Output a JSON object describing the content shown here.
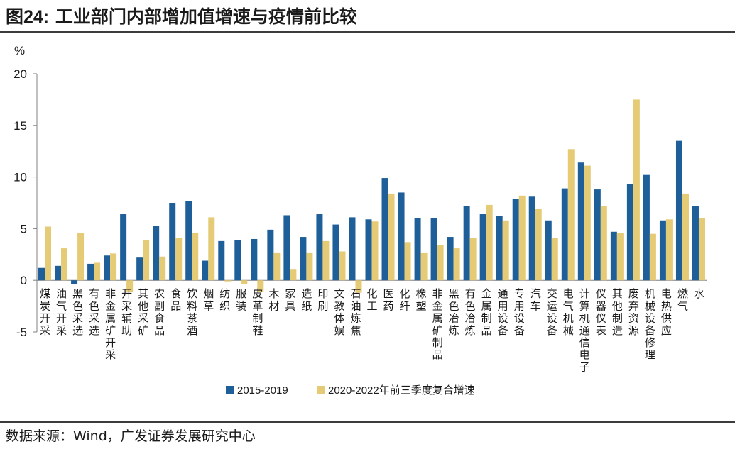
{
  "header": {
    "figure_label": "图24:",
    "title_text": "工业部门内部增加值增速与疫情前比较"
  },
  "footer": {
    "source_text": "数据来源：Wind，广发证券发展研究中心"
  },
  "chart_data": {
    "type": "bar",
    "title": "工业部门内部增加值增速与疫情前比较",
    "ylabel": "%",
    "ylim": [
      -5,
      20
    ],
    "yticks": [
      -5,
      0,
      5,
      10,
      15,
      20
    ],
    "legend_position": "bottom-center",
    "categories": [
      "煤炭开采",
      "油气开采",
      "黑色采选",
      "有色采选",
      "非金属矿开采",
      "开采辅助",
      "其他采矿",
      "农副食品",
      "食品",
      "饮料茶酒",
      "烟草",
      "纺织",
      "服装",
      "皮革制鞋",
      "木材",
      "家具",
      "造纸",
      "印刷",
      "文教体娱",
      "石油炼焦",
      "化工",
      "医药",
      "化纤",
      "橡塑",
      "非金属矿制品",
      "黑色冶炼",
      "有色冶炼",
      "金属制品",
      "通用设备",
      "专用设备",
      "汽车",
      "交运设备",
      "电气机械",
      "计算机通信电子",
      "仪器仪表",
      "其他制造",
      "废弃资源",
      "机械设备修理",
      "电热供应",
      "燃气",
      "水"
    ],
    "series": [
      {
        "name": "2015-2019",
        "color": "#1f5f99",
        "values": [
          1.2,
          1.4,
          -0.4,
          1.6,
          2.4,
          6.4,
          2.2,
          5.3,
          7.5,
          7.7,
          1.9,
          3.8,
          3.9,
          4.0,
          4.9,
          6.3,
          4.2,
          6.4,
          5.4,
          6.1,
          5.9,
          9.9,
          8.5,
          6.0,
          6.0,
          4.2,
          7.2,
          6.4,
          6.2,
          7.9,
          8.1,
          5.8,
          8.9,
          11.4,
          8.8,
          4.7,
          9.3,
          10.2,
          5.8,
          13.5,
          7.2
        ]
      },
      {
        "name": "2020-2022年前三季度复合增速",
        "color": "#e6cb76",
        "values": [
          5.2,
          3.1,
          4.6,
          1.7,
          2.6,
          -1.1,
          3.9,
          2.3,
          4.1,
          4.6,
          6.1,
          -0.1,
          -0.4,
          -1.1,
          2.7,
          1.1,
          2.7,
          3.8,
          2.8,
          -1.2,
          5.7,
          8.4,
          3.7,
          2.7,
          3.4,
          3.1,
          4.1,
          7.3,
          5.8,
          8.2,
          6.9,
          4.1,
          12.7,
          11.1,
          7.2,
          4.6,
          17.5,
          4.5,
          5.9,
          8.4,
          6.0
        ]
      }
    ]
  }
}
